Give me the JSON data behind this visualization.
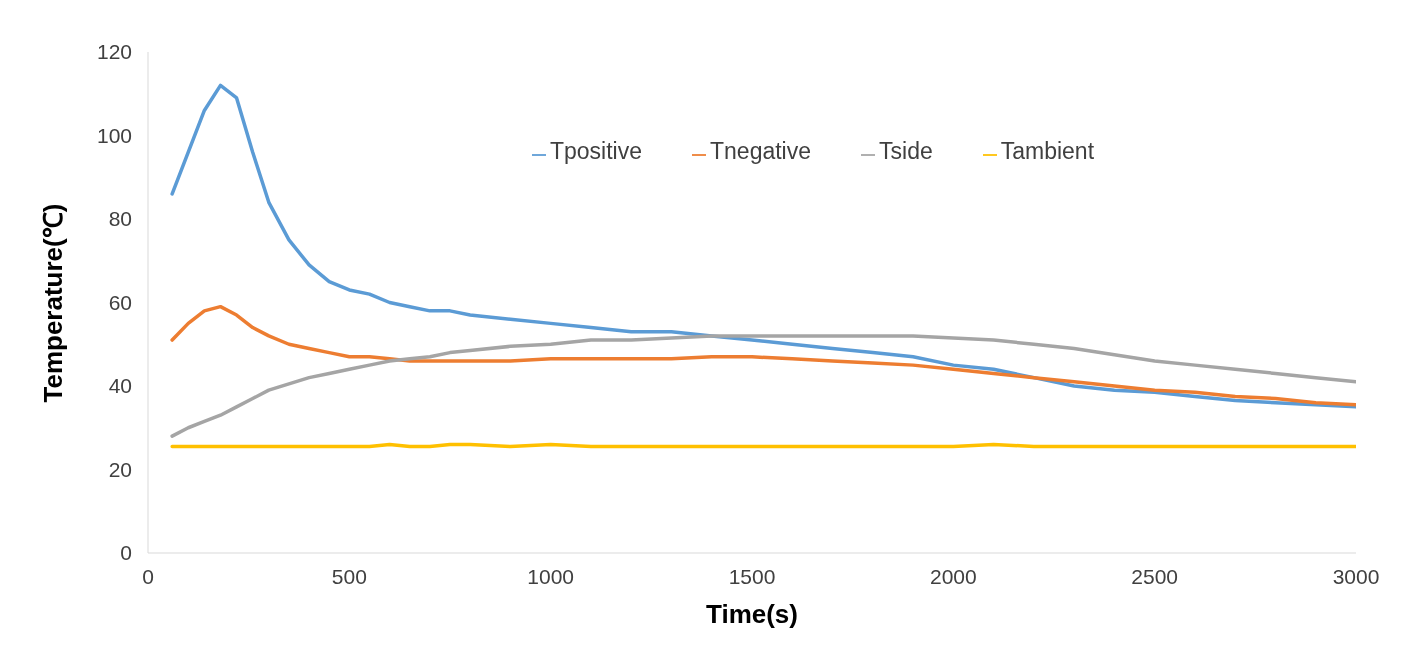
{
  "chart_data": {
    "type": "line",
    "xlabel": "Time(s)",
    "ylabel": "Temperature(℃)",
    "x": [
      60,
      100,
      140,
      180,
      220,
      260,
      300,
      350,
      400,
      450,
      500,
      550,
      600,
      650,
      700,
      750,
      800,
      900,
      1000,
      1100,
      1200,
      1300,
      1400,
      1500,
      1600,
      1700,
      1800,
      1900,
      2000,
      2100,
      2200,
      2300,
      2400,
      2500,
      2600,
      2700,
      2800,
      2900,
      3000
    ],
    "series": [
      {
        "name": "Tpositive",
        "color": "#5b9bd5",
        "values": [
          86,
          96,
          106,
          112,
          109,
          96,
          84,
          75,
          69,
          65,
          63,
          62,
          60,
          59,
          58,
          58,
          57,
          56,
          55,
          54,
          53,
          53,
          52,
          51,
          50,
          49,
          48,
          47,
          45,
          44,
          42,
          40,
          39,
          38.5,
          37.5,
          36.5,
          36,
          35.5,
          35
        ]
      },
      {
        "name": "Tnegative",
        "color": "#ed7d31",
        "values": [
          51,
          55,
          58,
          59,
          57,
          54,
          52,
          50,
          49,
          48,
          47,
          47,
          46.5,
          46,
          46,
          46,
          46,
          46,
          46.5,
          46.5,
          46.5,
          46.5,
          47,
          47,
          46.5,
          46,
          45.5,
          45,
          44,
          43,
          42,
          41,
          40,
          39,
          38.5,
          37.5,
          37,
          36,
          35.5
        ]
      },
      {
        "name": "Tside",
        "color": "#a5a5a5",
        "values": [
          28,
          30,
          31.5,
          33,
          35,
          37,
          39,
          40.5,
          42,
          43,
          44,
          45,
          46,
          46.5,
          47,
          48,
          48.5,
          49.5,
          50,
          51,
          51,
          51.5,
          52,
          52,
          52,
          52,
          52,
          52,
          51.5,
          51,
          50,
          49,
          47.5,
          46,
          45,
          44,
          43,
          42,
          41
        ]
      },
      {
        "name": "Tambient",
        "color": "#ffc000",
        "values": [
          25.5,
          25.5,
          25.5,
          25.5,
          25.5,
          25.5,
          25.5,
          25.5,
          25.5,
          25.5,
          25.5,
          25.5,
          26,
          25.5,
          25.5,
          26,
          26,
          25.5,
          26,
          25.5,
          25.5,
          25.5,
          25.5,
          25.5,
          25.5,
          25.5,
          25.5,
          25.5,
          25.5,
          26,
          25.5,
          25.5,
          25.5,
          25.5,
          25.5,
          25.5,
          25.5,
          25.5,
          25.5
        ]
      }
    ],
    "xlim": [
      0,
      3000
    ],
    "xticks": [
      0,
      500,
      1000,
      1500,
      2000,
      2500,
      3000
    ],
    "ylim": [
      0,
      120
    ],
    "yticks": [
      0,
      20,
      40,
      60,
      80,
      100,
      120
    ],
    "grid": false,
    "legend": "top",
    "marker": "none",
    "line_style": "solid"
  }
}
